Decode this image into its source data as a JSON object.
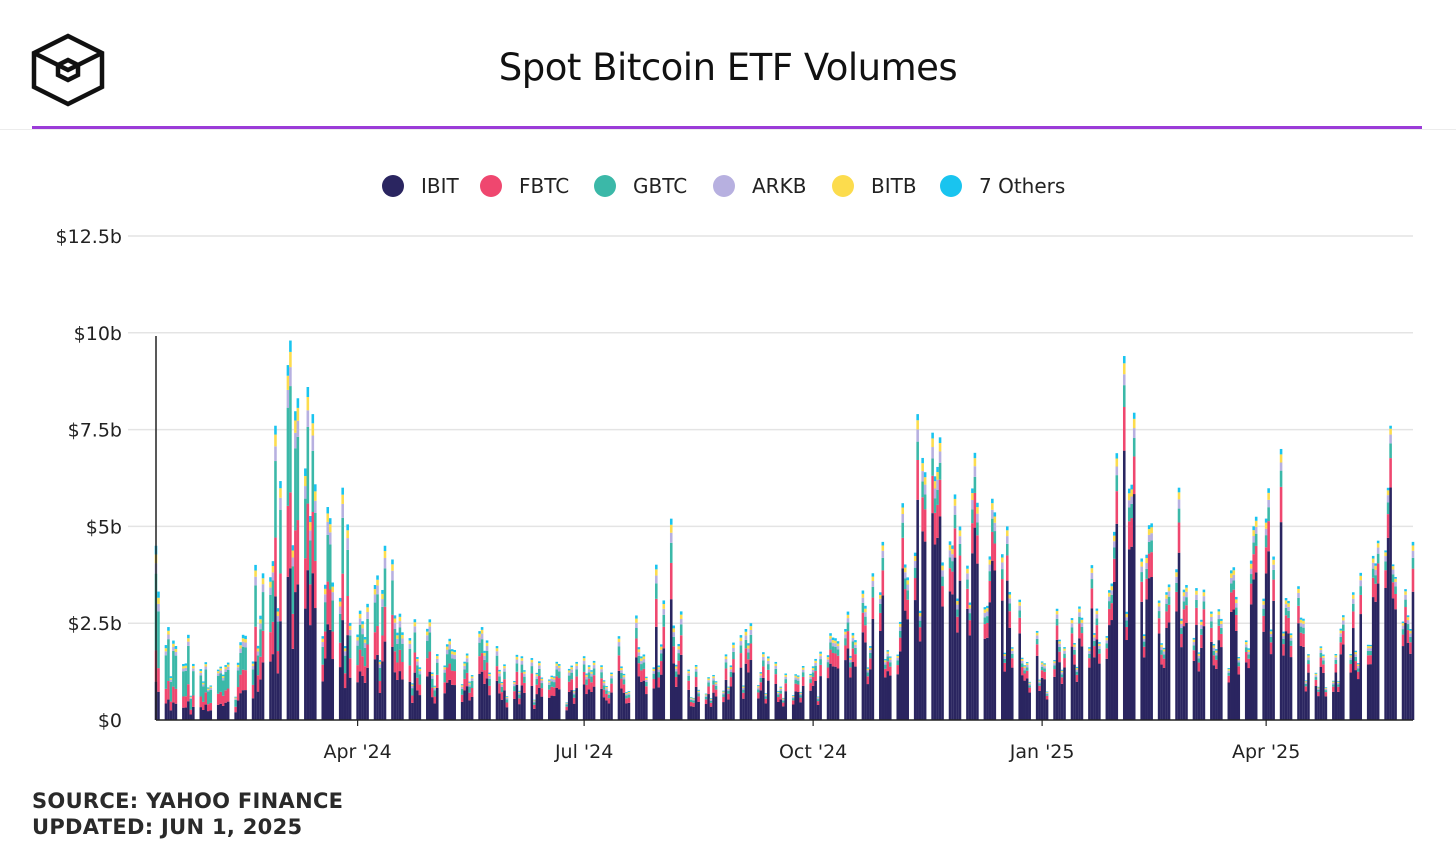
{
  "header": {
    "title": "Spot Bitcoin ETF Volumes",
    "logo_icon": "cube-logo-icon",
    "accent_color": "#9b3bd8"
  },
  "footer": {
    "source": "SOURCE: YAHOO FINANCE",
    "updated": "UPDATED: JUN 1, 2025"
  },
  "chart_data": {
    "type": "bar",
    "stacked": true,
    "title": "Spot Bitcoin ETF Volumes",
    "xlabel": "",
    "ylabel": "",
    "ylim": [
      0,
      12.5
    ],
    "yticks": [
      {
        "value": 0,
        "label": "$0"
      },
      {
        "value": 2.5,
        "label": "$2.5b"
      },
      {
        "value": 5,
        "label": "$5b"
      },
      {
        "value": 7.5,
        "label": "$7.5b"
      },
      {
        "value": 10,
        "label": "$10b"
      },
      {
        "value": 12.5,
        "label": "$12.5b"
      }
    ],
    "xticks": [
      {
        "date": "2024-04-01",
        "label": "Apr '24"
      },
      {
        "date": "2024-07-01",
        "label": "Jul '24"
      },
      {
        "date": "2024-10-01",
        "label": "Oct '24"
      },
      {
        "date": "2025-01-01",
        "label": "Jan '25"
      },
      {
        "date": "2025-04-01",
        "label": "Apr '25"
      }
    ],
    "x_range": [
      "2024-01-11",
      "2025-05-30"
    ],
    "grid": true,
    "legend_position": "top-center",
    "series": [
      {
        "name": "IBIT",
        "color": "#2a2560"
      },
      {
        "name": "FBTC",
        "color": "#ef476f"
      },
      {
        "name": "GBTC",
        "color": "#3bb8a8"
      },
      {
        "name": "ARKB",
        "color": "#b7b0e0"
      },
      {
        "name": "BITB",
        "color": "#fcdc4d"
      },
      {
        "name": "7 Others",
        "color": "#19c4ef"
      }
    ],
    "anchors": [
      {
        "date": "2024-01-11",
        "total": 4.5,
        "shares": [
          0.22,
          0.18,
          0.44,
          0.06,
          0.05,
          0.05
        ]
      },
      {
        "date": "2024-01-16",
        "total": 2.4,
        "shares": [
          0.22,
          0.2,
          0.45,
          0.05,
          0.04,
          0.04
        ]
      },
      {
        "date": "2024-01-24",
        "total": 2.2,
        "shares": [
          0.22,
          0.2,
          0.45,
          0.05,
          0.04,
          0.04
        ]
      },
      {
        "date": "2024-02-05",
        "total": 1.3,
        "shares": [
          0.3,
          0.22,
          0.36,
          0.05,
          0.04,
          0.03
        ]
      },
      {
        "date": "2024-02-15",
        "total": 2.2,
        "shares": [
          0.35,
          0.24,
          0.27,
          0.06,
          0.04,
          0.04
        ]
      },
      {
        "date": "2024-02-28",
        "total": 7.6,
        "shares": [
          0.42,
          0.2,
          0.26,
          0.05,
          0.04,
          0.03
        ]
      },
      {
        "date": "2024-03-05",
        "total": 9.8,
        "shares": [
          0.4,
          0.2,
          0.28,
          0.05,
          0.04,
          0.03
        ]
      },
      {
        "date": "2024-03-12",
        "total": 8.6,
        "shares": [
          0.45,
          0.2,
          0.23,
          0.05,
          0.04,
          0.03
        ]
      },
      {
        "date": "2024-03-14",
        "total": 7.9,
        "shares": [
          0.48,
          0.2,
          0.2,
          0.05,
          0.04,
          0.03
        ]
      },
      {
        "date": "2024-03-20",
        "total": 5.5,
        "shares": [
          0.45,
          0.2,
          0.22,
          0.06,
          0.04,
          0.03
        ]
      },
      {
        "date": "2024-03-26",
        "total": 6.0,
        "shares": [
          0.43,
          0.2,
          0.24,
          0.06,
          0.04,
          0.03
        ]
      },
      {
        "date": "2024-04-05",
        "total": 3.0,
        "shares": [
          0.45,
          0.2,
          0.22,
          0.06,
          0.04,
          0.03
        ]
      },
      {
        "date": "2024-04-12",
        "total": 4.5,
        "shares": [
          0.45,
          0.2,
          0.22,
          0.06,
          0.04,
          0.03
        ]
      },
      {
        "date": "2024-04-30",
        "total": 2.6,
        "shares": [
          0.48,
          0.2,
          0.19,
          0.06,
          0.04,
          0.03
        ]
      },
      {
        "date": "2024-05-21",
        "total": 2.4,
        "shares": [
          0.52,
          0.2,
          0.15,
          0.06,
          0.04,
          0.03
        ]
      },
      {
        "date": "2024-06-10",
        "total": 1.6,
        "shares": [
          0.55,
          0.2,
          0.12,
          0.06,
          0.04,
          0.03
        ]
      },
      {
        "date": "2024-06-28",
        "total": 1.5,
        "shares": [
          0.55,
          0.2,
          0.12,
          0.06,
          0.04,
          0.03
        ]
      },
      {
        "date": "2024-07-22",
        "total": 2.7,
        "shares": [
          0.6,
          0.18,
          0.1,
          0.05,
          0.04,
          0.03
        ]
      },
      {
        "date": "2024-08-05",
        "total": 5.2,
        "shares": [
          0.6,
          0.18,
          0.1,
          0.05,
          0.04,
          0.03
        ]
      },
      {
        "date": "2024-08-12",
        "total": 1.3,
        "shares": [
          0.6,
          0.18,
          0.1,
          0.05,
          0.04,
          0.03
        ]
      },
      {
        "date": "2024-09-06",
        "total": 2.5,
        "shares": [
          0.62,
          0.17,
          0.09,
          0.05,
          0.04,
          0.03
        ]
      },
      {
        "date": "2024-09-20",
        "total": 1.2,
        "shares": [
          0.62,
          0.17,
          0.09,
          0.05,
          0.04,
          0.03
        ]
      },
      {
        "date": "2024-10-15",
        "total": 2.8,
        "shares": [
          0.66,
          0.16,
          0.08,
          0.04,
          0.03,
          0.03
        ]
      },
      {
        "date": "2024-10-29",
        "total": 4.6,
        "shares": [
          0.7,
          0.14,
          0.07,
          0.04,
          0.03,
          0.02
        ]
      },
      {
        "date": "2024-11-06",
        "total": 5.6,
        "shares": [
          0.7,
          0.14,
          0.07,
          0.04,
          0.03,
          0.02
        ]
      },
      {
        "date": "2024-11-12",
        "total": 7.9,
        "shares": [
          0.72,
          0.13,
          0.06,
          0.04,
          0.03,
          0.02
        ]
      },
      {
        "date": "2024-11-21",
        "total": 7.3,
        "shares": [
          0.72,
          0.13,
          0.06,
          0.04,
          0.03,
          0.02
        ]
      },
      {
        "date": "2024-12-05",
        "total": 6.9,
        "shares": [
          0.72,
          0.13,
          0.06,
          0.04,
          0.03,
          0.02
        ]
      },
      {
        "date": "2024-12-18",
        "total": 5.0,
        "shares": [
          0.72,
          0.13,
          0.06,
          0.04,
          0.03,
          0.02
        ]
      },
      {
        "date": "2024-12-30",
        "total": 2.3,
        "shares": [
          0.72,
          0.13,
          0.06,
          0.04,
          0.03,
          0.02
        ]
      },
      {
        "date": "2025-01-21",
        "total": 4.0,
        "shares": [
          0.72,
          0.13,
          0.06,
          0.04,
          0.03,
          0.02
        ]
      },
      {
        "date": "2025-02-03",
        "total": 9.4,
        "shares": [
          0.74,
          0.12,
          0.06,
          0.03,
          0.03,
          0.02
        ]
      },
      {
        "date": "2025-02-20",
        "total": 3.3,
        "shares": [
          0.72,
          0.13,
          0.06,
          0.04,
          0.03,
          0.02
        ]
      },
      {
        "date": "2025-02-25",
        "total": 6.0,
        "shares": [
          0.72,
          0.13,
          0.06,
          0.04,
          0.03,
          0.02
        ]
      },
      {
        "date": "2025-03-10",
        "total": 2.8,
        "shares": [
          0.72,
          0.13,
          0.06,
          0.04,
          0.03,
          0.02
        ]
      },
      {
        "date": "2025-04-07",
        "total": 7.0,
        "shares": [
          0.73,
          0.13,
          0.06,
          0.03,
          0.03,
          0.02
        ]
      },
      {
        "date": "2025-04-18",
        "total": 1.7,
        "shares": [
          0.72,
          0.13,
          0.06,
          0.04,
          0.03,
          0.02
        ]
      },
      {
        "date": "2025-05-09",
        "total": 3.8,
        "shares": [
          0.72,
          0.13,
          0.06,
          0.04,
          0.03,
          0.02
        ]
      },
      {
        "date": "2025-05-21",
        "total": 7.6,
        "shares": [
          0.79,
          0.1,
          0.05,
          0.03,
          0.02,
          0.01
        ]
      },
      {
        "date": "2025-05-30",
        "total": 4.6,
        "shares": [
          0.72,
          0.13,
          0.06,
          0.04,
          0.03,
          0.02
        ]
      }
    ]
  }
}
